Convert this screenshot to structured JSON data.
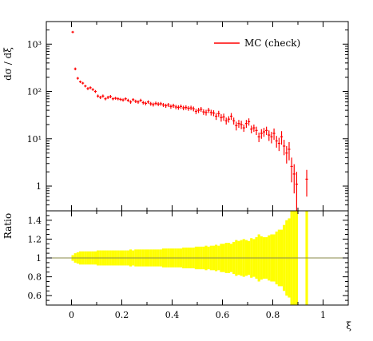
{
  "chart_data": [
    {
      "type": "scatter",
      "panel": "main",
      "ylabel": "dσ / dξ",
      "yscale": "log",
      "ylim": [
        0.3,
        3000
      ],
      "xlim": [
        -0.1,
        1.1
      ],
      "yticks": [
        1,
        10,
        100,
        1000
      ],
      "ytick_labels": [
        "1",
        "10¹",
        "10²",
        "10³"
      ],
      "legend_position": "top-right",
      "series": [
        {
          "name": "MC (check)",
          "color": "#ff0000",
          "x": [
            0.005,
            0.015,
            0.025,
            0.035,
            0.045,
            0.055,
            0.065,
            0.075,
            0.085,
            0.095,
            0.105,
            0.115,
            0.125,
            0.135,
            0.145,
            0.155,
            0.165,
            0.175,
            0.185,
            0.195,
            0.205,
            0.215,
            0.225,
            0.235,
            0.245,
            0.255,
            0.265,
            0.275,
            0.285,
            0.295,
            0.305,
            0.315,
            0.325,
            0.335,
            0.345,
            0.355,
            0.365,
            0.375,
            0.385,
            0.395,
            0.405,
            0.415,
            0.425,
            0.435,
            0.445,
            0.455,
            0.465,
            0.475,
            0.485,
            0.495,
            0.505,
            0.515,
            0.525,
            0.535,
            0.545,
            0.555,
            0.565,
            0.575,
            0.585,
            0.595,
            0.605,
            0.615,
            0.625,
            0.635,
            0.645,
            0.655,
            0.665,
            0.675,
            0.685,
            0.695,
            0.705,
            0.715,
            0.725,
            0.735,
            0.745,
            0.755,
            0.765,
            0.775,
            0.785,
            0.795,
            0.805,
            0.815,
            0.825,
            0.835,
            0.845,
            0.855,
            0.865,
            0.875,
            0.885,
            0.895,
            0.935
          ],
          "y": [
            1800,
            300,
            190,
            160,
            150,
            130,
            115,
            120,
            110,
            100,
            80,
            75,
            80,
            70,
            75,
            78,
            70,
            72,
            70,
            68,
            66,
            70,
            65,
            60,
            67,
            62,
            60,
            65,
            58,
            56,
            60,
            55,
            53,
            56,
            54,
            55,
            52,
            50,
            52,
            48,
            50,
            47,
            46,
            48,
            45,
            46,
            44,
            45,
            43,
            38,
            40,
            42,
            37,
            36,
            40,
            36,
            35,
            30,
            34,
            28,
            29,
            24,
            26,
            30,
            24,
            19,
            21,
            20,
            17,
            21,
            23,
            16,
            17,
            15,
            11,
            13,
            14,
            15,
            12,
            11,
            13,
            9,
            8,
            11,
            7,
            5,
            6,
            2.6,
            1.8,
            1.1,
            1.4
          ],
          "err": [
            100,
            20,
            12,
            10,
            9,
            8,
            8,
            8,
            7,
            7,
            6,
            6,
            6,
            5,
            6,
            6,
            5,
            5,
            5,
            5,
            5,
            5,
            5,
            5,
            5,
            5,
            5,
            5,
            5,
            5,
            5,
            5,
            5,
            5,
            5,
            5,
            5,
            5,
            5,
            5,
            5,
            5,
            5,
            5,
            5,
            5,
            5,
            5,
            5,
            5,
            5,
            5,
            5,
            5,
            5,
            5,
            5,
            5,
            5,
            5,
            5,
            4,
            4,
            5,
            4,
            4,
            4,
            4,
            3,
            4,
            4,
            3,
            3,
            3,
            2.5,
            3,
            3,
            3,
            3,
            3,
            3.5,
            2.5,
            2.5,
            3.5,
            2.5,
            2,
            2.5,
            1.4,
            1.1,
            0.9,
            0.8
          ]
        }
      ]
    },
    {
      "type": "area",
      "panel": "ratio",
      "ylabel": "Ratio",
      "xlabel": "ξ",
      "ylim": [
        0.5,
        1.5
      ],
      "xlim": [
        -0.1,
        1.1
      ],
      "yticks": [
        0.6,
        0.8,
        1.0,
        1.2,
        1.4
      ],
      "ytick_labels": [
        "0.6",
        "0.8",
        "1",
        "1.2",
        "1.4"
      ],
      "xticks": [
        0,
        0.2,
        0.4,
        0.6,
        0.8,
        1.0
      ],
      "xtick_labels": [
        "0",
        "0.2",
        "0.4",
        "0.6",
        "0.8",
        "1"
      ],
      "band_color": "#ffff00",
      "reference_line": 1.0,
      "bins_x": [
        0.005,
        0.015,
        0.025,
        0.035,
        0.045,
        0.055,
        0.065,
        0.075,
        0.085,
        0.095,
        0.105,
        0.115,
        0.125,
        0.135,
        0.145,
        0.155,
        0.165,
        0.175,
        0.185,
        0.195,
        0.205,
        0.215,
        0.225,
        0.235,
        0.245,
        0.255,
        0.265,
        0.275,
        0.285,
        0.295,
        0.305,
        0.315,
        0.325,
        0.335,
        0.345,
        0.355,
        0.365,
        0.375,
        0.385,
        0.395,
        0.405,
        0.415,
        0.425,
        0.435,
        0.445,
        0.455,
        0.465,
        0.475,
        0.485,
        0.495,
        0.505,
        0.515,
        0.525,
        0.535,
        0.545,
        0.555,
        0.565,
        0.575,
        0.585,
        0.595,
        0.605,
        0.615,
        0.625,
        0.635,
        0.645,
        0.655,
        0.665,
        0.675,
        0.685,
        0.695,
        0.705,
        0.715,
        0.725,
        0.735,
        0.745,
        0.755,
        0.765,
        0.775,
        0.785,
        0.795,
        0.805,
        0.815,
        0.825,
        0.835,
        0.845,
        0.855,
        0.865,
        0.875,
        0.885,
        0.895,
        0.935
      ],
      "rel_err": [
        0.03,
        0.05,
        0.06,
        0.07,
        0.07,
        0.07,
        0.07,
        0.07,
        0.07,
        0.07,
        0.08,
        0.08,
        0.08,
        0.08,
        0.08,
        0.08,
        0.08,
        0.08,
        0.08,
        0.08,
        0.08,
        0.08,
        0.08,
        0.09,
        0.08,
        0.09,
        0.09,
        0.09,
        0.09,
        0.09,
        0.09,
        0.09,
        0.09,
        0.09,
        0.09,
        0.09,
        0.1,
        0.1,
        0.1,
        0.1,
        0.1,
        0.1,
        0.1,
        0.1,
        0.11,
        0.11,
        0.11,
        0.11,
        0.11,
        0.12,
        0.12,
        0.12,
        0.12,
        0.13,
        0.12,
        0.13,
        0.13,
        0.14,
        0.13,
        0.15,
        0.15,
        0.16,
        0.16,
        0.15,
        0.17,
        0.19,
        0.18,
        0.19,
        0.2,
        0.19,
        0.18,
        0.21,
        0.2,
        0.22,
        0.25,
        0.23,
        0.22,
        0.22,
        0.24,
        0.25,
        0.25,
        0.28,
        0.3,
        0.3,
        0.35,
        0.4,
        0.42,
        0.55,
        0.6,
        0.8,
        0.6
      ]
    }
  ]
}
